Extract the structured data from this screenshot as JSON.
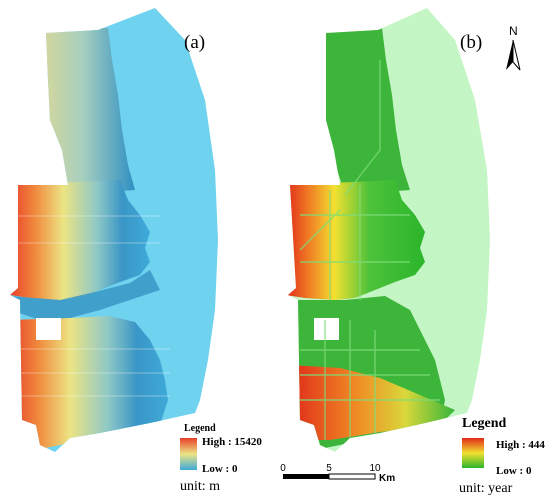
{
  "panels": [
    {
      "label": "(a)",
      "legend": {
        "title": "Legend",
        "high": "High : 15420",
        "low": "Low : 0",
        "unit": "unit: m"
      },
      "colors": {
        "high": "#e8402a",
        "mid": "#ece484",
        "low": "#3eaad8",
        "background": "#6fd2ef"
      }
    },
    {
      "label": "(b)",
      "legend": {
        "title": "Legend",
        "high": "High : 444",
        "low": "Low : 0",
        "unit": "unit: year"
      },
      "colors": {
        "high": "#e02a1a",
        "mid": "#f2e030",
        "low": "#2bb52b",
        "background": "#c4f5c4"
      }
    }
  ],
  "scale_bar": {
    "ticks": [
      "0",
      "5",
      "10"
    ],
    "unit": "Km"
  },
  "north_arrow": {
    "label": "N"
  }
}
